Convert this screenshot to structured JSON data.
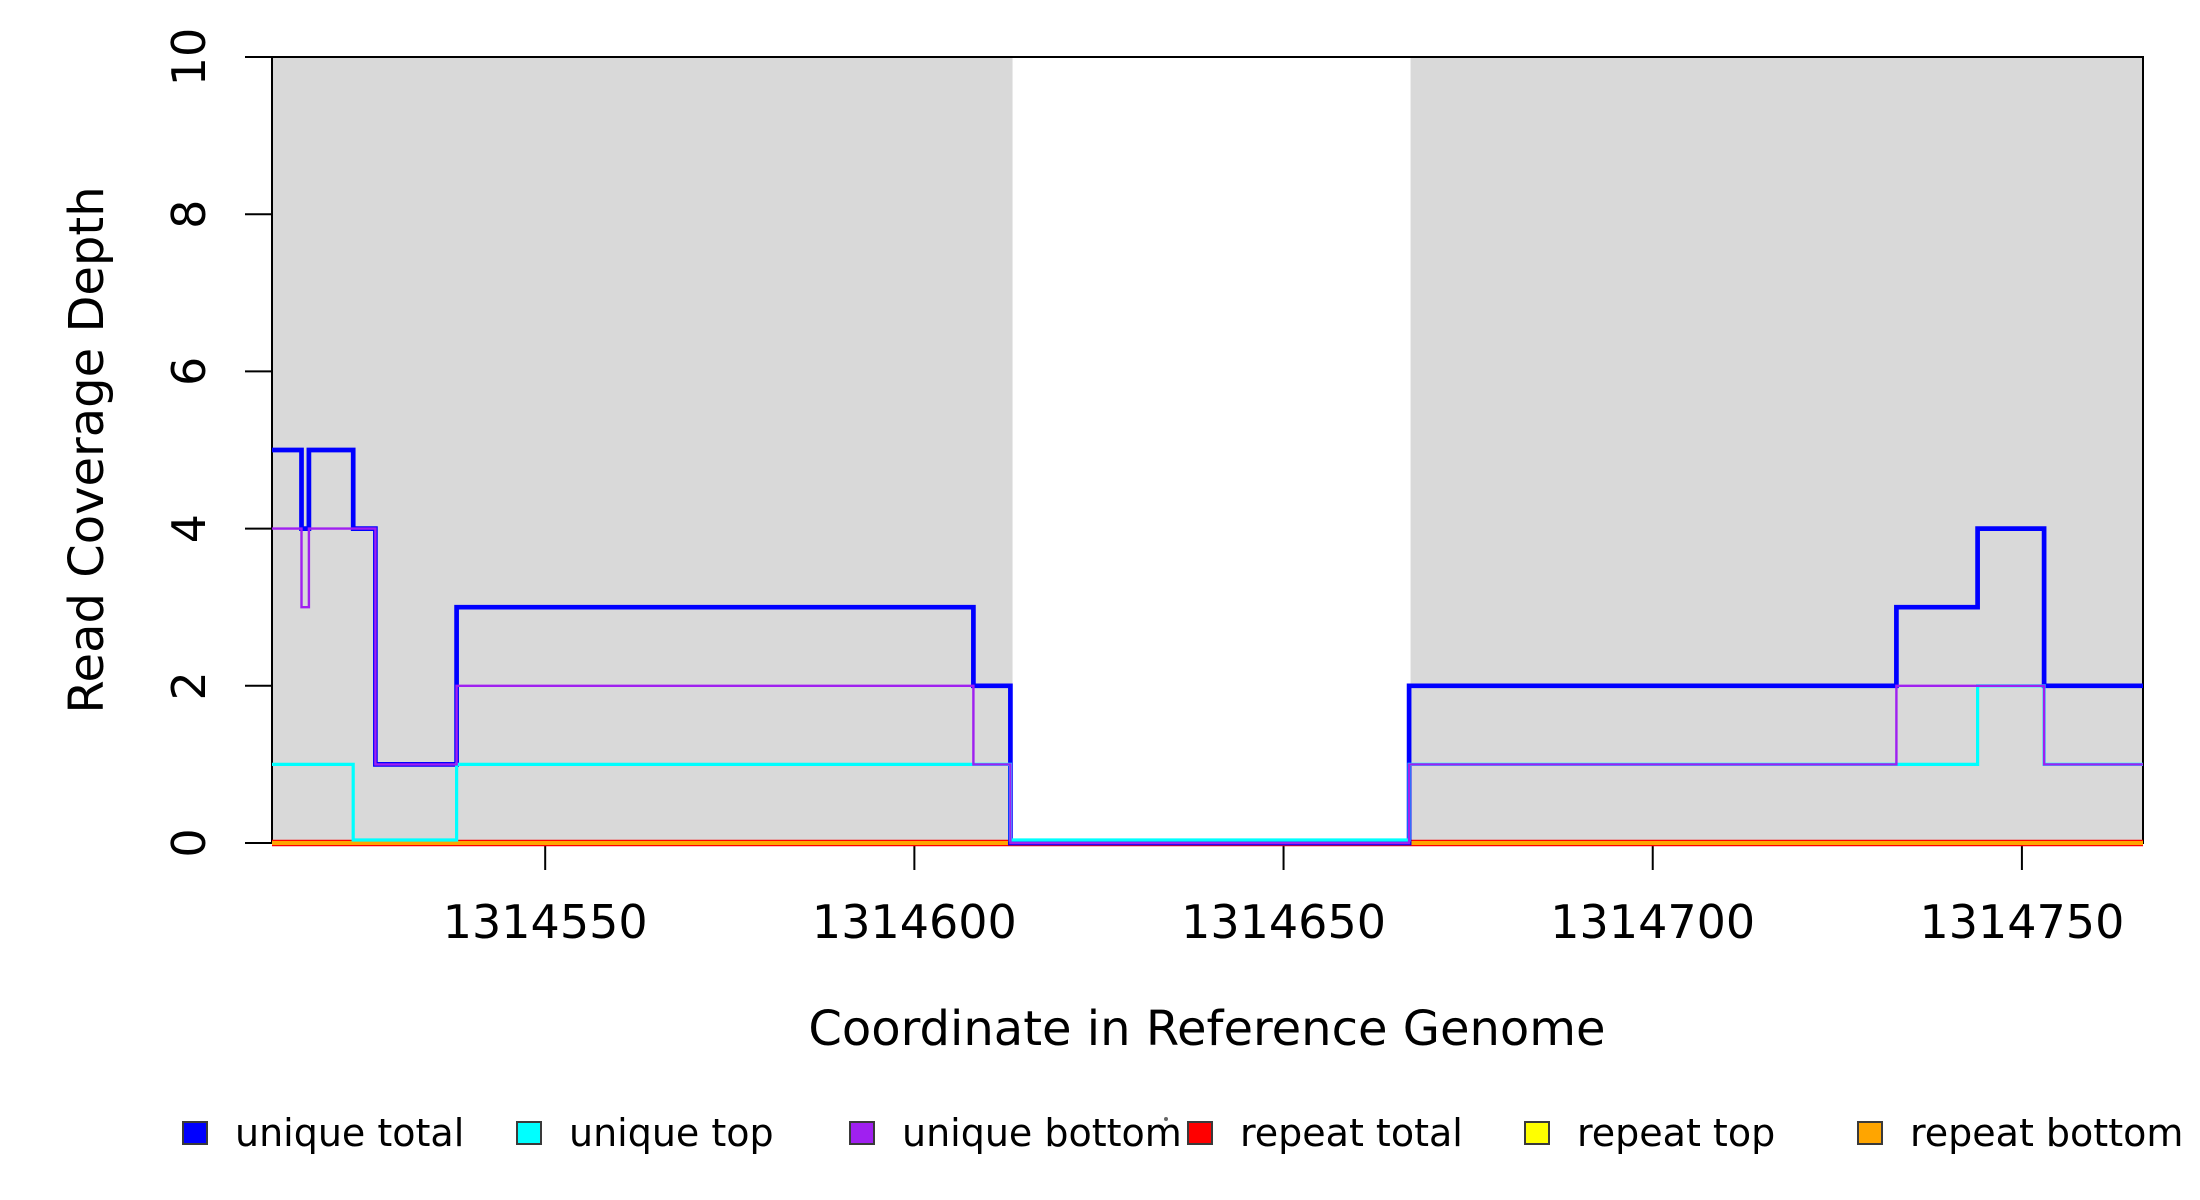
{
  "chart_data": {
    "type": "line",
    "subtype": "step-coverage-plot",
    "title": "",
    "xlabel": "Coordinate in Reference Genome",
    "ylabel": "Read Coverage Depth",
    "xlim": [
      1314513,
      1314766.4
    ],
    "ylim": [
      0,
      10
    ],
    "x_ticks": [
      1314550,
      1314600,
      1314650,
      1314700,
      1314750
    ],
    "y_ticks": [
      0,
      2,
      4,
      6,
      8,
      10
    ],
    "grid": "off",
    "background_color": "#ffffff",
    "shaded_band_color": "#d9d9d9",
    "shaded_regions": [
      {
        "start": 1314513,
        "end": 1314613.3
      },
      {
        "start": 1314667.2,
        "end": 1314766.4
      }
    ],
    "series": [
      {
        "name": "repeat total",
        "color": "#ff0000",
        "lwd": 6.5,
        "segments": [
          [
            1314513,
            1314766.4,
            0
          ]
        ]
      },
      {
        "name": "repeat top",
        "color": "#ffff00",
        "lwd": 2.5,
        "segments": [
          [
            1314513,
            1314766.4,
            0
          ]
        ]
      },
      {
        "name": "repeat bottom",
        "color": "#ffa500",
        "lwd": 4,
        "segments": [
          [
            1314513,
            1314766.4,
            0
          ]
        ]
      },
      {
        "name": "unique total",
        "color": "#0000ff",
        "lwd": 4.7,
        "segments": [
          [
            1314513,
            1314517,
            5
          ],
          [
            1314517,
            1314518,
            4
          ],
          [
            1314518,
            1314524,
            5
          ],
          [
            1314524,
            1314527,
            4
          ],
          [
            1314527,
            1314538,
            1
          ],
          [
            1314538,
            1314608,
            3
          ],
          [
            1314608,
            1314613,
            2
          ],
          [
            1314613,
            1314667,
            0
          ],
          [
            1314667,
            1314733,
            2
          ],
          [
            1314733,
            1314744,
            3
          ],
          [
            1314744,
            1314753,
            4
          ],
          [
            1314753,
            1314766.4,
            2
          ]
        ]
      },
      {
        "name": "unique top",
        "color": "#00ffff",
        "lwd": 3.2,
        "zero_offset": true,
        "segments": [
          [
            1314513,
            1314524,
            1
          ],
          [
            1314524,
            1314538,
            0
          ],
          [
            1314538,
            1314613,
            1
          ],
          [
            1314613,
            1314667,
            0
          ],
          [
            1314667,
            1314744,
            1
          ],
          [
            1314744,
            1314753,
            2
          ],
          [
            1314753,
            1314766.4,
            1
          ]
        ]
      },
      {
        "name": "unique bottom",
        "color": "#a020f0",
        "lwd": 2.4,
        "segments": [
          [
            1314513,
            1314517,
            4
          ],
          [
            1314517,
            1314518,
            3
          ],
          [
            1314518,
            1314527,
            4
          ],
          [
            1314527,
            1314538,
            1
          ],
          [
            1314538,
            1314608,
            2
          ],
          [
            1314608,
            1314613,
            1
          ],
          [
            1314613,
            1314667,
            0
          ],
          [
            1314667,
            1314733,
            1
          ],
          [
            1314733,
            1314753,
            2
          ],
          [
            1314753,
            1314766.4,
            1
          ]
        ]
      }
    ],
    "legend": [
      {
        "label": "unique total",
        "color": "#0000ff"
      },
      {
        "label": "unique top",
        "color": "#00ffff"
      },
      {
        "label": "unique bottom",
        "color": "#a020f0"
      },
      {
        "label": "repeat total",
        "color": "#ff0000"
      },
      {
        "label": "repeat top",
        "color": "#ffff00"
      },
      {
        "label": "repeat bottom",
        "color": "#ffa500"
      }
    ],
    "legend_position": "bottom"
  }
}
